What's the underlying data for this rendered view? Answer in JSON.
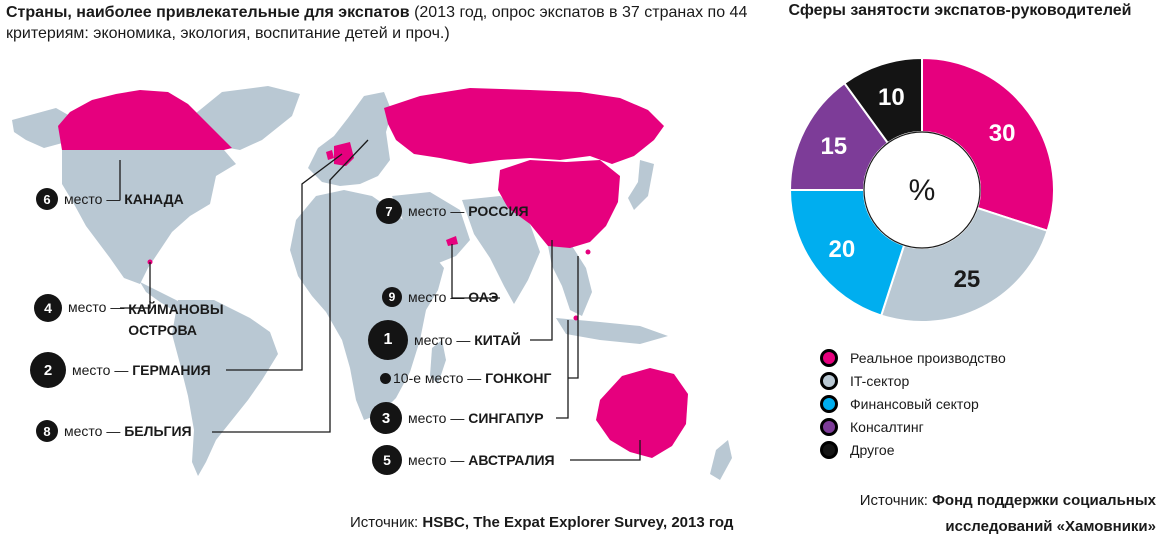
{
  "map": {
    "title_bold": "Страны, наиболее привлекательные для экспатов",
    "title_rest": " (2013 год, опрос экспатов в 37 странах по 44 критериям: экономика, экология, воспитание детей и проч.)",
    "source_prefix": "Источник: ",
    "source_name": "HSBC, The Expat Explorer Survey, 2013 год",
    "highlight_color": "#e6007e",
    "land_color": "#b9c8d3",
    "rankings": [
      {
        "rank": "6",
        "word": "место —",
        "country": "КАНАДА"
      },
      {
        "rank": "4",
        "word": "место —",
        "country": "КАЙМАНОВЫ ОСТРОВА"
      },
      {
        "rank": "2",
        "word": "место —",
        "country": "ГЕРМАНИЯ"
      },
      {
        "rank": "8",
        "word": "место —",
        "country": "БЕЛЬГИЯ"
      },
      {
        "rank": "7",
        "word": "место —",
        "country": "РОССИЯ"
      },
      {
        "rank": "9",
        "word": "место —",
        "country": "ОАЭ"
      },
      {
        "rank": "1",
        "word": "место —",
        "country": "КИТАЙ"
      },
      {
        "rank": "10",
        "word": "-е место —",
        "country": "ГОНКОНГ"
      },
      {
        "rank": "3",
        "word": "место —",
        "country": "СИНГАПУР"
      },
      {
        "rank": "5",
        "word": "место —",
        "country": "АВСТРАЛИЯ"
      }
    ]
  },
  "chart_data": {
    "type": "pie",
    "title": "Сферы занятости экспатов-руководителей",
    "center_label": "%",
    "slices": [
      {
        "label": "Реальное производство",
        "value": 30,
        "color": "#e6007e"
      },
      {
        "label": "IT-сектор",
        "value": 25,
        "color": "#b9c8d3"
      },
      {
        "label": "Финансовый сектор",
        "value": 20,
        "color": "#00aeef"
      },
      {
        "label": "Консалтинг",
        "value": 15,
        "color": "#7d3c98"
      },
      {
        "label": "Другое",
        "value": 10,
        "color": "#141414"
      }
    ],
    "legend_placement": "bottom"
  },
  "pie_source": {
    "prefix": "Источник: ",
    "name": "Фонд поддержки социальных исследований «Хамовники»"
  }
}
